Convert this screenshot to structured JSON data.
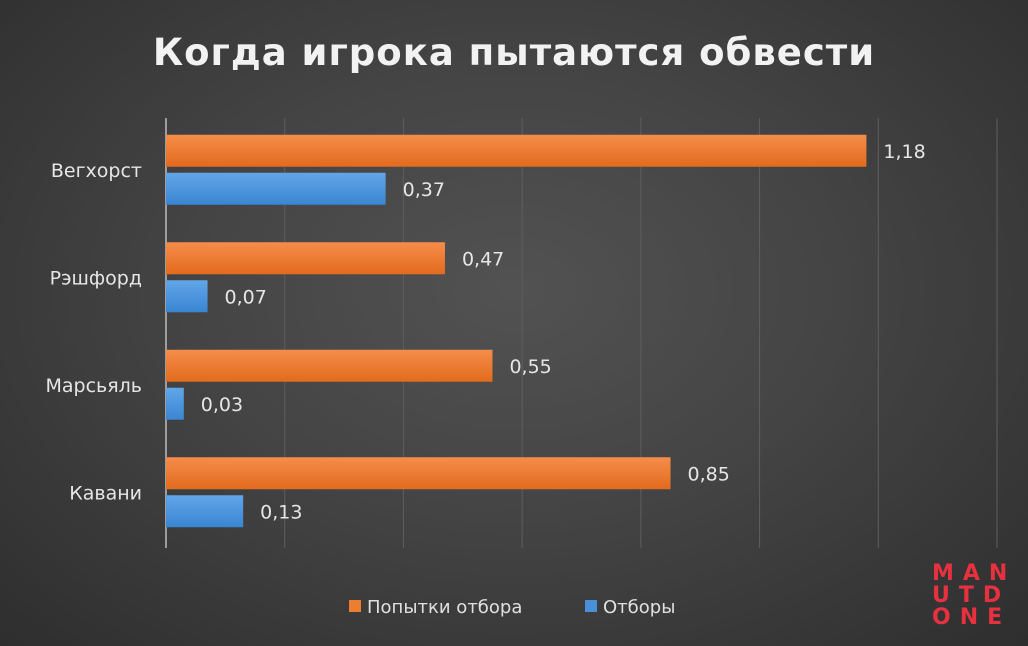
{
  "chart_data": {
    "type": "bar",
    "orientation": "horizontal",
    "title": "Когда игрока пытаются обвести",
    "categories": [
      "Вегхорст",
      "Рэшфорд",
      "Марсьяль",
      "Кавани"
    ],
    "series": [
      {
        "name": "Попытки отбора",
        "color": "#ed7d31",
        "values": [
          1.18,
          0.47,
          0.55,
          0.85
        ],
        "labels": [
          "1,18",
          "0,47",
          "0,55",
          "0,85"
        ]
      },
      {
        "name": "Отборы",
        "color": "#4a90d9",
        "values": [
          0.37,
          0.07,
          0.03,
          0.13
        ],
        "labels": [
          "0,37",
          "0,07",
          "0,03",
          "0,13"
        ]
      }
    ],
    "xlim": [
      0,
      1.4
    ],
    "grid_step": 0.2,
    "grid": true,
    "legend": "bottom"
  },
  "logo": {
    "lines": [
      "MAN",
      "UTD",
      "ONE"
    ],
    "color": "#e8313f"
  }
}
